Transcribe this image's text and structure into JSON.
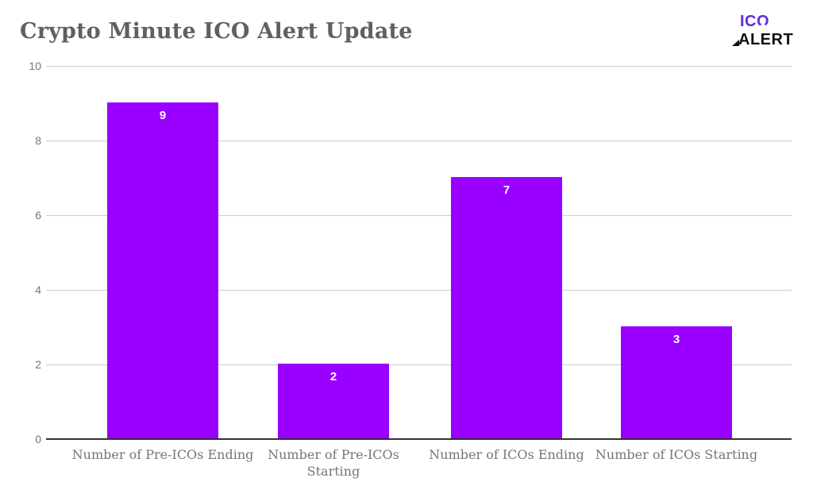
{
  "header": {
    "title": "Crypto Minute ICO Alert Update",
    "logo": {
      "line1": "IC",
      "line1_o": "O",
      "line2": "ALERT"
    }
  },
  "chart_data": {
    "type": "bar",
    "title": "Crypto Minute ICO Alert Update",
    "categories": [
      "Number of Pre-ICOs Ending",
      "Number of Pre-ICOs Starting",
      "Number of ICOs Ending",
      "Number of ICOs Starting"
    ],
    "values": [
      9,
      2,
      7,
      3
    ],
    "value_labels": [
      "9",
      "2",
      "7",
      "3"
    ],
    "xlabel": "",
    "ylabel": "",
    "ylim": [
      0,
      10
    ],
    "yticks": [
      "0",
      "2",
      "4",
      "6",
      "8",
      "10"
    ],
    "grid": true,
    "legend": false,
    "bar_color": "#9900ff",
    "value_label_color": "#ffffff"
  },
  "colors": {
    "bar": "#9900ff",
    "logo_purple": "#5e2ce0",
    "logo_black": "#111111",
    "title_text": "#5f6062",
    "axis_text": "#757575",
    "gridline": "#cccccc",
    "baseline": "#333333",
    "background": "#ffffff"
  }
}
